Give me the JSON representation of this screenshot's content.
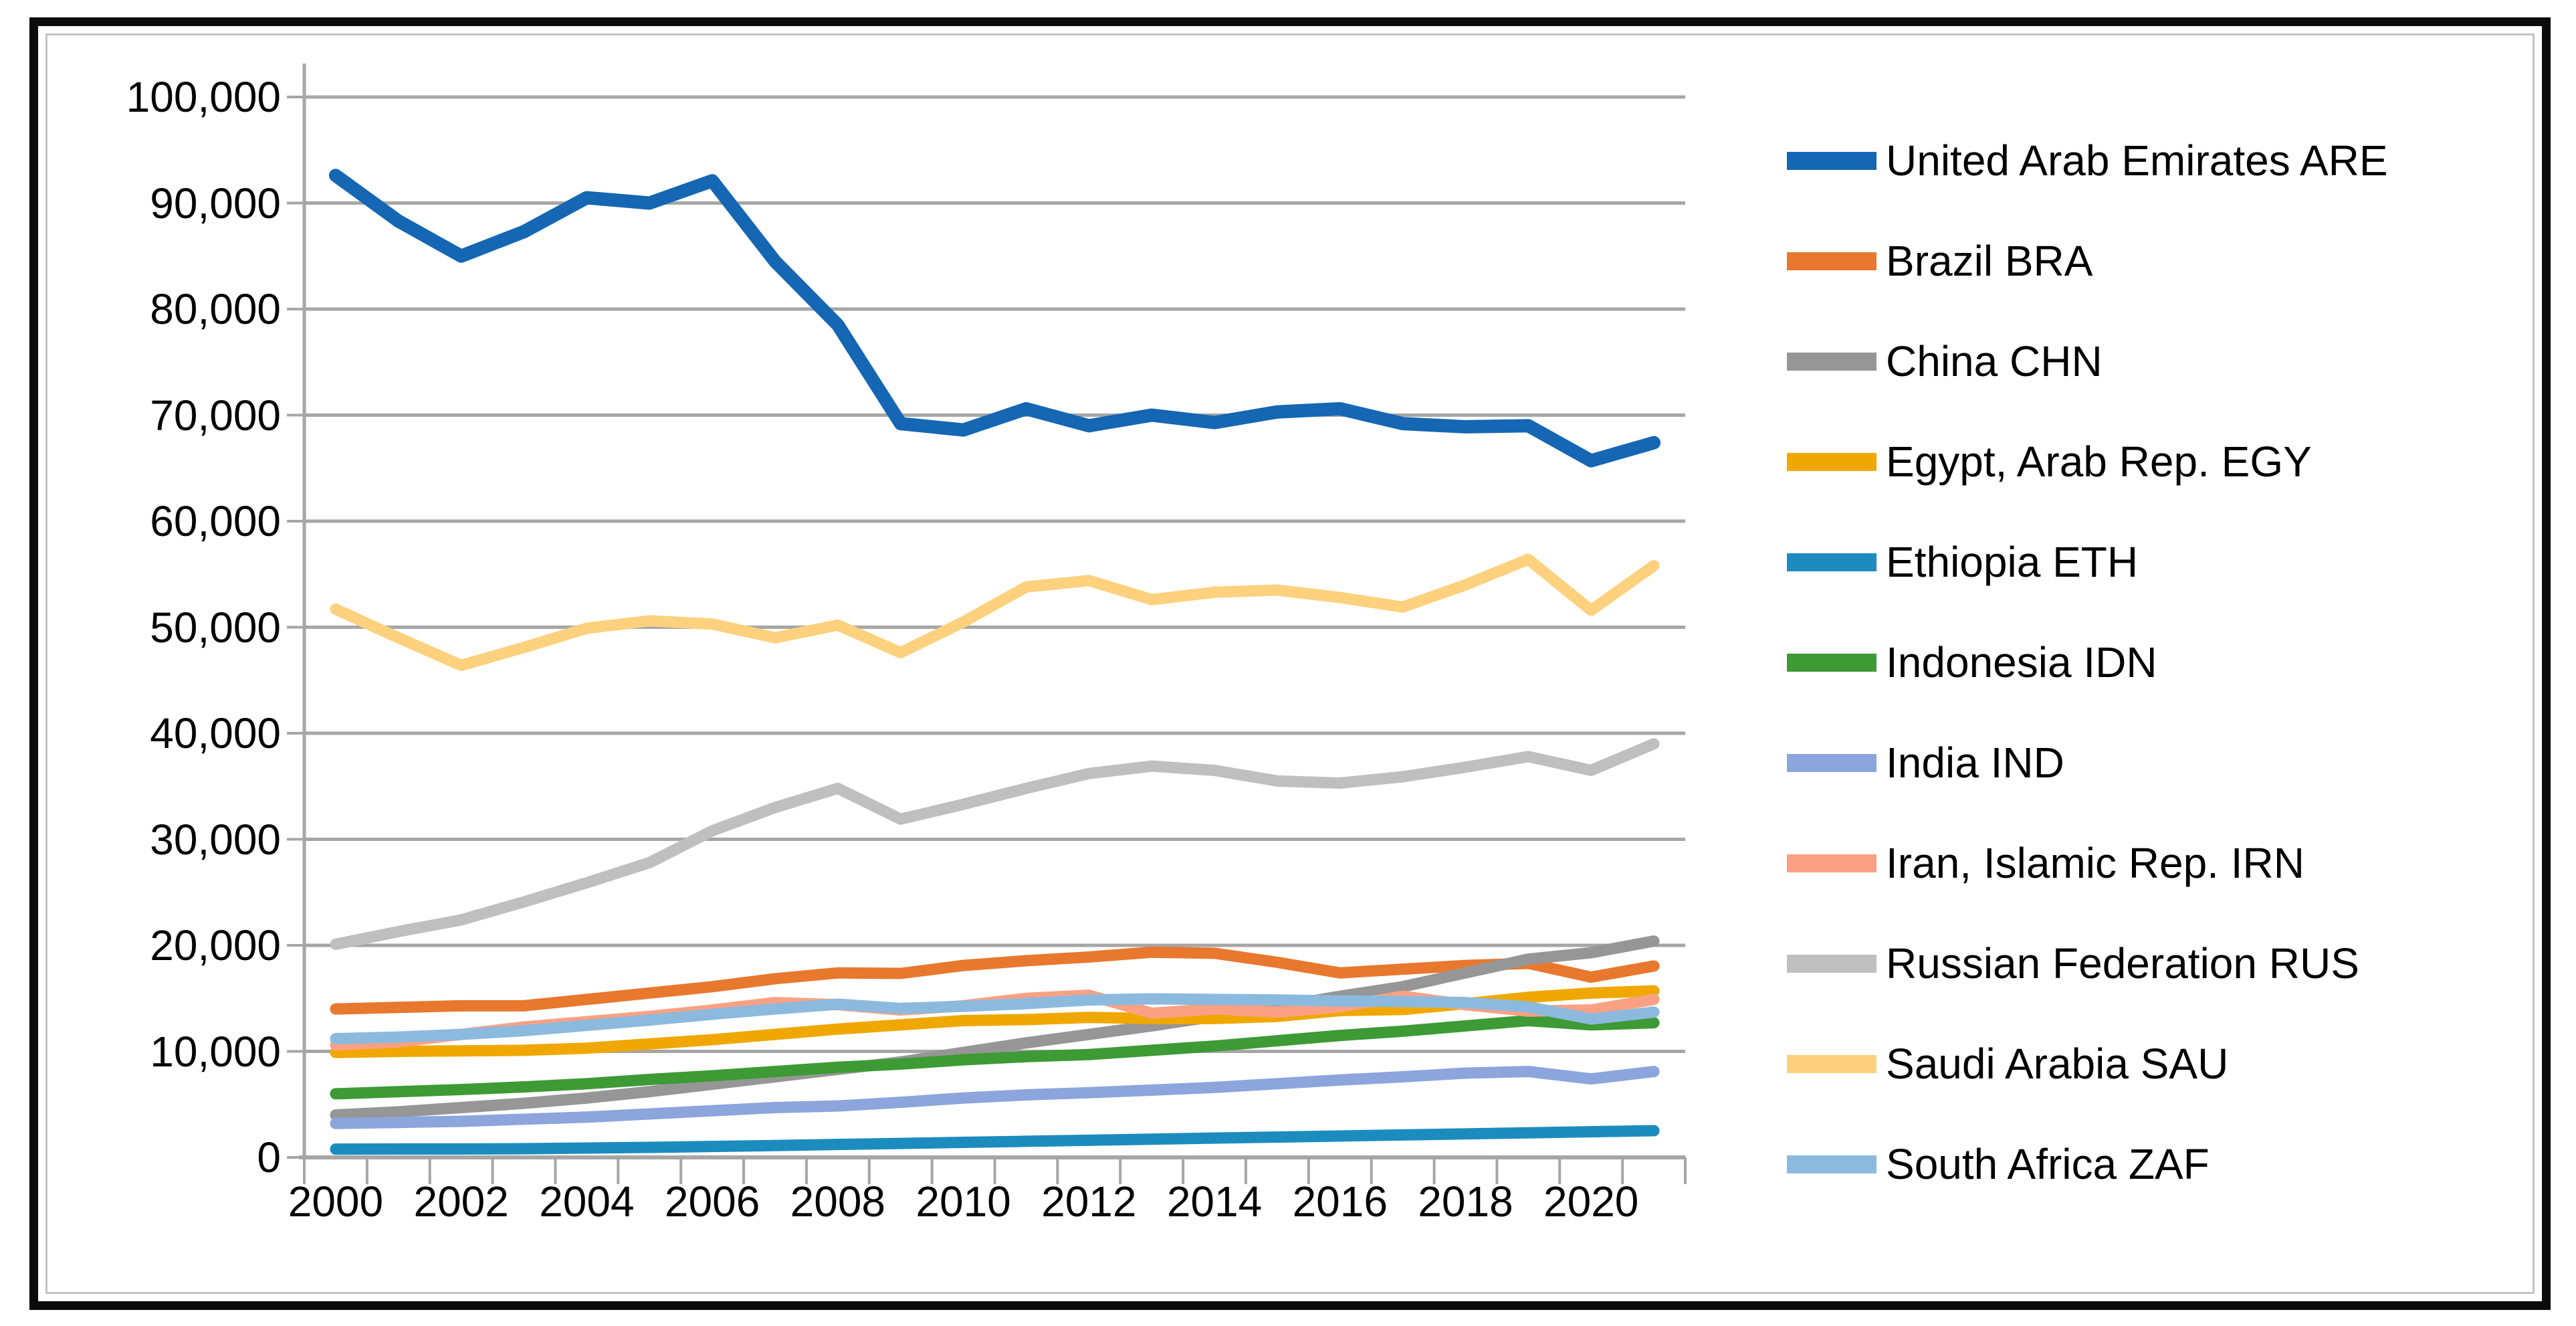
{
  "chart_data": {
    "type": "line",
    "x": [
      2000,
      2001,
      2002,
      2003,
      2004,
      2005,
      2006,
      2007,
      2008,
      2009,
      2010,
      2011,
      2012,
      2013,
      2014,
      2015,
      2016,
      2017,
      2018,
      2019,
      2020,
      2021
    ],
    "x_tick_labels": [
      "2000",
      "2002",
      "2004",
      "2006",
      "2008",
      "2010",
      "2012",
      "2014",
      "2016",
      "2018",
      "2020"
    ],
    "y_tick_labels": [
      "0",
      "10,000",
      "20,000",
      "30,000",
      "40,000",
      "50,000",
      "60,000",
      "70,000",
      "80,000",
      "90,000",
      "100,000"
    ],
    "ylim": [
      0,
      100000
    ],
    "grid": "horizontal",
    "legend_position": "right",
    "series": [
      {
        "name": "United Arab Emirates",
        "code": "ARE",
        "label": "United Arab Emirates ARE",
        "color": "#1566b3",
        "values": [
          92600,
          88300,
          85000,
          87300,
          90500,
          90000,
          92100,
          84500,
          78500,
          69200,
          68600,
          70600,
          69000,
          70000,
          69300,
          70300,
          70600,
          69200,
          68900,
          69000,
          65700,
          67400
        ]
      },
      {
        "name": "Brazil",
        "code": "BRA",
        "label": "Brazil BRA",
        "color": "#e8782e",
        "values": [
          14000,
          14150,
          14300,
          14300,
          14900,
          15500,
          16100,
          16850,
          17400,
          17350,
          18100,
          18550,
          18900,
          19350,
          19250,
          18400,
          17400,
          17750,
          18100,
          18300,
          17000,
          18050
        ]
      },
      {
        "name": "China",
        "code": "CHN",
        "label": "China CHN",
        "color": "#969696",
        "values": [
          4000,
          4300,
          4700,
          5100,
          5600,
          6200,
          6900,
          7600,
          8300,
          9000,
          9900,
          10800,
          11600,
          12400,
          13300,
          14200,
          15200,
          16100,
          17400,
          18700,
          19300,
          20400
        ]
      },
      {
        "name": "Egypt, Arab Rep.",
        "code": "EGY",
        "label": "Egypt, Arab Rep. EGY",
        "color": "#f0a800",
        "values": [
          9900,
          10000,
          10050,
          10100,
          10300,
          10700,
          11100,
          11600,
          12100,
          12500,
          12900,
          13000,
          13200,
          13100,
          13100,
          13300,
          13850,
          13950,
          14500,
          15100,
          15500,
          15700
        ]
      },
      {
        "name": "Ethiopia",
        "code": "ETH",
        "label": "Ethiopia ETH",
        "color": "#1c8cbf",
        "values": [
          780,
          800,
          800,
          820,
          880,
          950,
          1030,
          1120,
          1220,
          1320,
          1420,
          1520,
          1620,
          1720,
          1820,
          1920,
          2020,
          2120,
          2220,
          2320,
          2420,
          2520
        ]
      },
      {
        "name": "Indonesia",
        "code": "IDN",
        "label": "Indonesia IDN",
        "color": "#3d9a35",
        "values": [
          6000,
          6200,
          6400,
          6650,
          6950,
          7350,
          7700,
          8100,
          8500,
          8800,
          9200,
          9500,
          9700,
          10100,
          10500,
          11000,
          11500,
          11900,
          12400,
          12900,
          12500,
          12700
        ]
      },
      {
        "name": "India",
        "code": "IND",
        "label": "India IND",
        "color": "#8ca5dc",
        "values": [
          3200,
          3300,
          3400,
          3600,
          3800,
          4100,
          4400,
          4700,
          4850,
          5200,
          5600,
          5900,
          6100,
          6350,
          6600,
          6950,
          7300,
          7600,
          7950,
          8100,
          7400,
          8100
        ]
      },
      {
        "name": "Iran, Islamic Rep.",
        "code": "IRN",
        "label": "Iran, Islamic Rep. IRN",
        "color": "#fba183",
        "values": [
          10600,
          10900,
          11600,
          12300,
          12800,
          13300,
          13900,
          14600,
          14400,
          13900,
          14300,
          15000,
          15300,
          13600,
          14000,
          13700,
          14200,
          15200,
          14400,
          13800,
          13900,
          14900
        ]
      },
      {
        "name": "Russian Federation",
        "code": "RUS",
        "label": "Russian Federation RUS",
        "color": "#bfbfbf",
        "values": [
          20100,
          21300,
          22400,
          24100,
          25900,
          27800,
          30800,
          33000,
          34800,
          31900,
          33300,
          34800,
          36200,
          36900,
          36500,
          35500,
          35300,
          35900,
          36800,
          37800,
          36500,
          39000
        ]
      },
      {
        "name": "Saudi Arabia",
        "code": "SAU",
        "label": "Saudi Arabia SAU",
        "color": "#fdd17d",
        "values": [
          51700,
          49000,
          46400,
          48100,
          49900,
          50600,
          50300,
          49000,
          50200,
          47600,
          50500,
          53800,
          54400,
          52600,
          53300,
          53500,
          52800,
          51900,
          54000,
          56400,
          51600,
          55800
        ]
      },
      {
        "name": "South Africa",
        "code": "ZAF",
        "label": "South Africa ZAF",
        "color": "#8cbadf",
        "values": [
          11200,
          11350,
          11600,
          11950,
          12450,
          12950,
          13500,
          14000,
          14450,
          14050,
          14250,
          14500,
          14850,
          14950,
          14900,
          14850,
          14750,
          14700,
          14600,
          14200,
          13050,
          13700
        ]
      }
    ]
  },
  "colors": {
    "gridline": "#a6a6a6",
    "axis": "#a6a6a6",
    "tick": "#a6a6a6",
    "text": "#000000",
    "frame_outer": "#0b0b0b",
    "frame_inner": "#c3c3c3",
    "background": "#ffffff"
  }
}
